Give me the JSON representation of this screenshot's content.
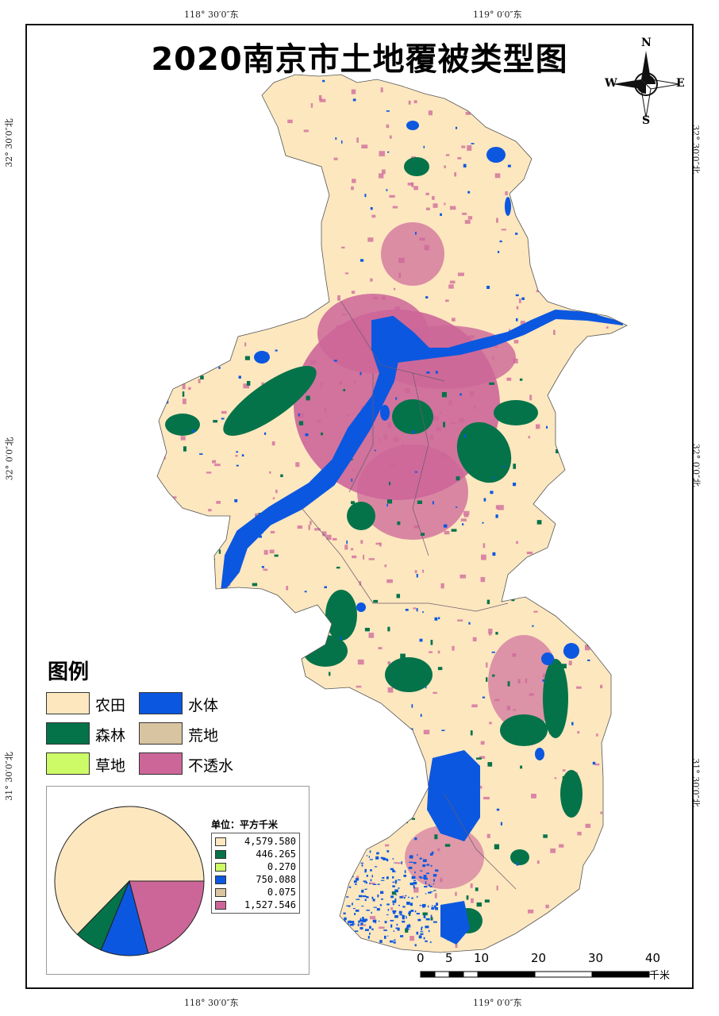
{
  "title": "2020南京市土地覆被类型图",
  "graticule": {
    "top_left": "118° 30′0″东",
    "top_right": "119° 0′0″东",
    "bottom_left": "118° 30′0″东",
    "bottom_right": "119° 0′0″东",
    "left_top": "32° 30′0″北",
    "left_mid": "32° 0′0″北",
    "left_bottom": "31° 30′0″北",
    "right_top": "32° 30′0″北",
    "right_mid": "32° 0′0″北",
    "right_bottom": "31° 30′0″北"
  },
  "compass": {
    "n": "N",
    "s": "S",
    "e": "E",
    "w": "W"
  },
  "legend": {
    "title": "图例",
    "items": [
      {
        "label": "农田",
        "color": "#fde7bf"
      },
      {
        "label": "水体",
        "color": "#0b57e0"
      },
      {
        "label": "森林",
        "color": "#05734a"
      },
      {
        "label": "荒地",
        "color": "#d8c4a0"
      },
      {
        "label": "草地",
        "color": "#cdfb67"
      },
      {
        "label": "不透水",
        "color": "#cc6699"
      }
    ]
  },
  "chart_data": {
    "type": "pie",
    "unit_label": "单位：平方千米",
    "slices": [
      {
        "value": 4579.58,
        "label": "4,579.580",
        "color": "#fde7bf"
      },
      {
        "value": 446.265,
        "label": "446.265",
        "color": "#05734a"
      },
      {
        "value": 0.27,
        "label": "0.270",
        "color": "#cdfb67"
      },
      {
        "value": 750.088,
        "label": "750.088",
        "color": "#0b57e0"
      },
      {
        "value": 0.075,
        "label": "0.075",
        "color": "#d8c4a0"
      },
      {
        "value": 1527.546,
        "label": "1,527.546",
        "color": "#cc6699"
      }
    ]
  },
  "scale_bar": {
    "ticks": [
      "0",
      "5",
      "10",
      "20",
      "30",
      "40"
    ],
    "unit": "千米"
  },
  "colors": {
    "farmland": "#fde7bf",
    "water": "#0b57e0",
    "forest": "#05734a",
    "impervious": "#cc6699"
  }
}
